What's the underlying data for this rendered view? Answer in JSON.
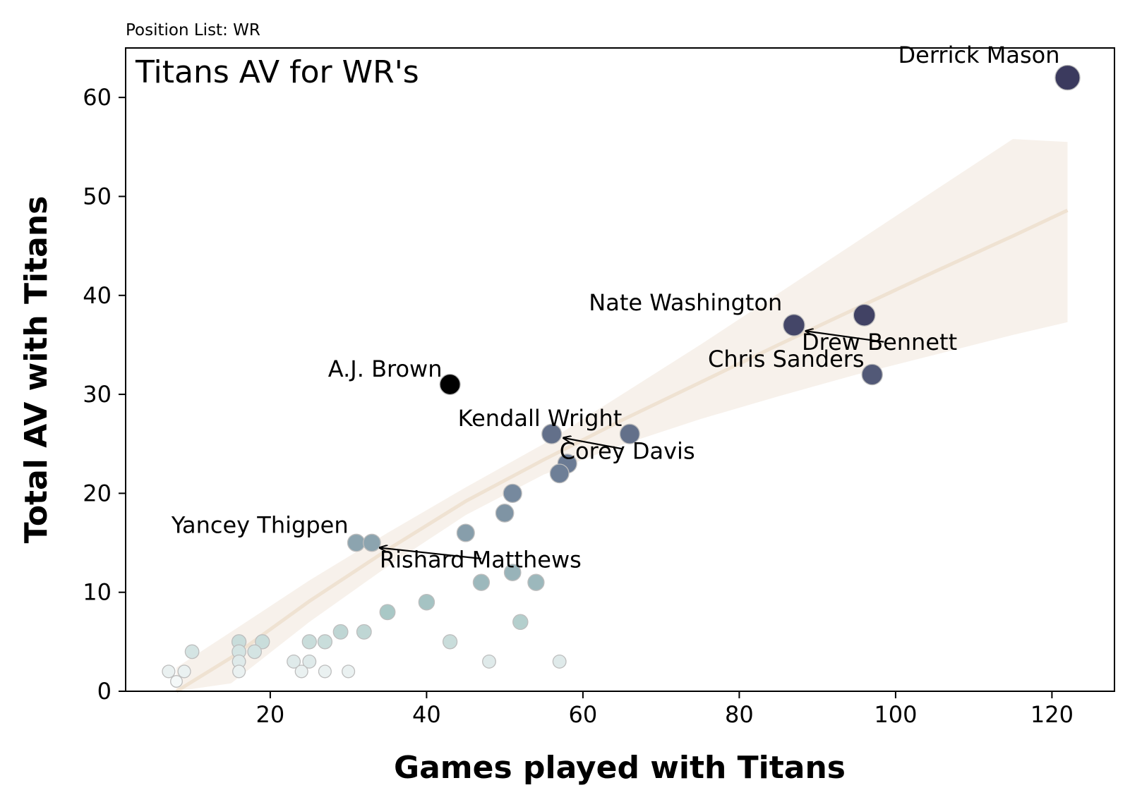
{
  "chart_data": {
    "type": "scatter",
    "subtitle": "Position List: WR",
    "title": "Titans AV for WR's",
    "xlabel": "Games played with Titans",
    "ylabel": "Total AV with Titans",
    "xlim": [
      1.5,
      128
    ],
    "ylim": [
      0,
      65
    ],
    "xticks": [
      20,
      40,
      60,
      80,
      100,
      120
    ],
    "yticks": [
      0,
      10,
      20,
      30,
      40,
      50,
      60
    ],
    "colors": {
      "dark": "#3b3a5e",
      "mid": "#6e7f97",
      "light": "#a9c8c6",
      "pale": "#ffffff",
      "trend": "#efe2d2",
      "band": "#f6efe7",
      "highlight": "#000000"
    },
    "trend": {
      "x": [
        8,
        15,
        25,
        35,
        45,
        55,
        65,
        75,
        85,
        95,
        105,
        115,
        122
      ],
      "y": [
        -0.8,
        3.4,
        9.1,
        14.3,
        19.2,
        23.4,
        27.4,
        31.2,
        35.0,
        38.7,
        42.4,
        46.0,
        48.6
      ],
      "lower": [
        -4.0,
        0.8,
        7.0,
        12.6,
        17.8,
        21.9,
        24.9,
        27.5,
        29.8,
        32.0,
        34.0,
        36.0,
        37.3
      ],
      "upper": [
        2.4,
        6.0,
        11.2,
        16.0,
        20.6,
        25.0,
        30.0,
        35.0,
        40.2,
        45.4,
        50.6,
        55.8,
        55.5
      ]
    },
    "points": [
      {
        "x": 122,
        "y": 62
      },
      {
        "x": 96,
        "y": 38
      },
      {
        "x": 87,
        "y": 37
      },
      {
        "x": 97,
        "y": 32
      },
      {
        "x": 43,
        "y": 31,
        "highlight": true
      },
      {
        "x": 66,
        "y": 26
      },
      {
        "x": 56,
        "y": 26
      },
      {
        "x": 58,
        "y": 23
      },
      {
        "x": 57,
        "y": 22
      },
      {
        "x": 51,
        "y": 20
      },
      {
        "x": 50,
        "y": 18
      },
      {
        "x": 45,
        "y": 16
      },
      {
        "x": 31,
        "y": 15
      },
      {
        "x": 33,
        "y": 15
      },
      {
        "x": 51,
        "y": 12
      },
      {
        "x": 47,
        "y": 11
      },
      {
        "x": 54,
        "y": 11
      },
      {
        "x": 40,
        "y": 9
      },
      {
        "x": 35,
        "y": 8
      },
      {
        "x": 52,
        "y": 7
      },
      {
        "x": 29,
        "y": 6
      },
      {
        "x": 32,
        "y": 6
      },
      {
        "x": 43,
        "y": 5
      },
      {
        "x": 16,
        "y": 5
      },
      {
        "x": 19,
        "y": 5
      },
      {
        "x": 25,
        "y": 5
      },
      {
        "x": 27,
        "y": 5
      },
      {
        "x": 10,
        "y": 4
      },
      {
        "x": 16,
        "y": 4
      },
      {
        "x": 18,
        "y": 4
      },
      {
        "x": 16,
        "y": 3
      },
      {
        "x": 23,
        "y": 3
      },
      {
        "x": 25,
        "y": 3
      },
      {
        "x": 48,
        "y": 3
      },
      {
        "x": 57,
        "y": 3
      },
      {
        "x": 7,
        "y": 2
      },
      {
        "x": 9,
        "y": 2
      },
      {
        "x": 16,
        "y": 2
      },
      {
        "x": 24,
        "y": 2
      },
      {
        "x": 27,
        "y": 2
      },
      {
        "x": 30,
        "y": 2
      },
      {
        "x": 8,
        "y": 1
      }
    ],
    "annotations": [
      {
        "text": "Derrick Mason",
        "x": 121,
        "y": 63.5,
        "anchor": "end"
      },
      {
        "text": "Nate Washington",
        "x": 85.5,
        "y": 38.5,
        "anchor": "end"
      },
      {
        "text": "Drew Bennett",
        "x": 88,
        "y": 34.5,
        "anchor": "start",
        "arrow_from": [
          98.5,
          35.3
        ],
        "arrow_to": [
          88.5,
          36.4
        ]
      },
      {
        "text": "Chris Sanders",
        "x": 96,
        "y": 32.8,
        "anchor": "end"
      },
      {
        "text": "A.J. Brown",
        "x": 42,
        "y": 31.8,
        "anchor": "end"
      },
      {
        "text": "Kendall Wright",
        "x": 65,
        "y": 26.8,
        "anchor": "end"
      },
      {
        "text": "Corey Davis",
        "x": 57,
        "y": 23.5,
        "anchor": "start",
        "arrow_from": [
          65,
          24.5
        ],
        "arrow_to": [
          57.5,
          25.6
        ]
      },
      {
        "text": "Yancey Thigpen",
        "x": 30,
        "y": 16,
        "anchor": "end"
      },
      {
        "text": "Rishard Matthews",
        "x": 34,
        "y": 12.5,
        "anchor": "start",
        "arrow_from": [
          47,
          13.4
        ],
        "arrow_to": [
          34,
          14.5
        ]
      }
    ]
  }
}
